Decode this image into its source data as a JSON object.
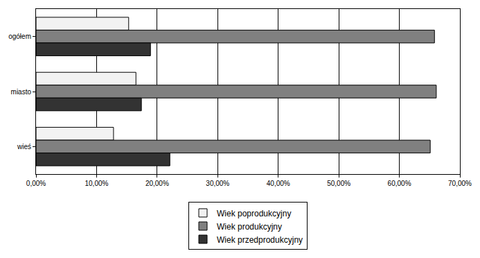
{
  "chart_data": {
    "type": "bar",
    "orientation": "horizontal",
    "categories": [
      "ogółem",
      "miasto",
      "wieś"
    ],
    "series": [
      {
        "name": "Wiek poprodukcyjny",
        "color": "#f2f2f2",
        "values": [
          15.3,
          16.5,
          12.8
        ]
      },
      {
        "name": "Wiek produkcyjny",
        "color": "#808080",
        "values": [
          65.8,
          66.1,
          65.1
        ]
      },
      {
        "name": "Wiek przedprodukcyjny",
        "color": "#333333",
        "values": [
          18.9,
          17.4,
          22.1
        ]
      }
    ],
    "xlim": [
      0,
      70
    ],
    "xticks": [
      {
        "value": 0,
        "label": "0,00%"
      },
      {
        "value": 10,
        "label": "10,00%"
      },
      {
        "value": 20,
        "label": "20,00%"
      },
      {
        "value": 30,
        "label": "30,00%"
      },
      {
        "value": 40,
        "label": "40,00%"
      },
      {
        "value": 50,
        "label": "50,00%"
      },
      {
        "value": 60,
        "label": "60,00%"
      },
      {
        "value": 70,
        "label": "70,00%"
      }
    ],
    "grid": true,
    "legend": "bottom"
  }
}
